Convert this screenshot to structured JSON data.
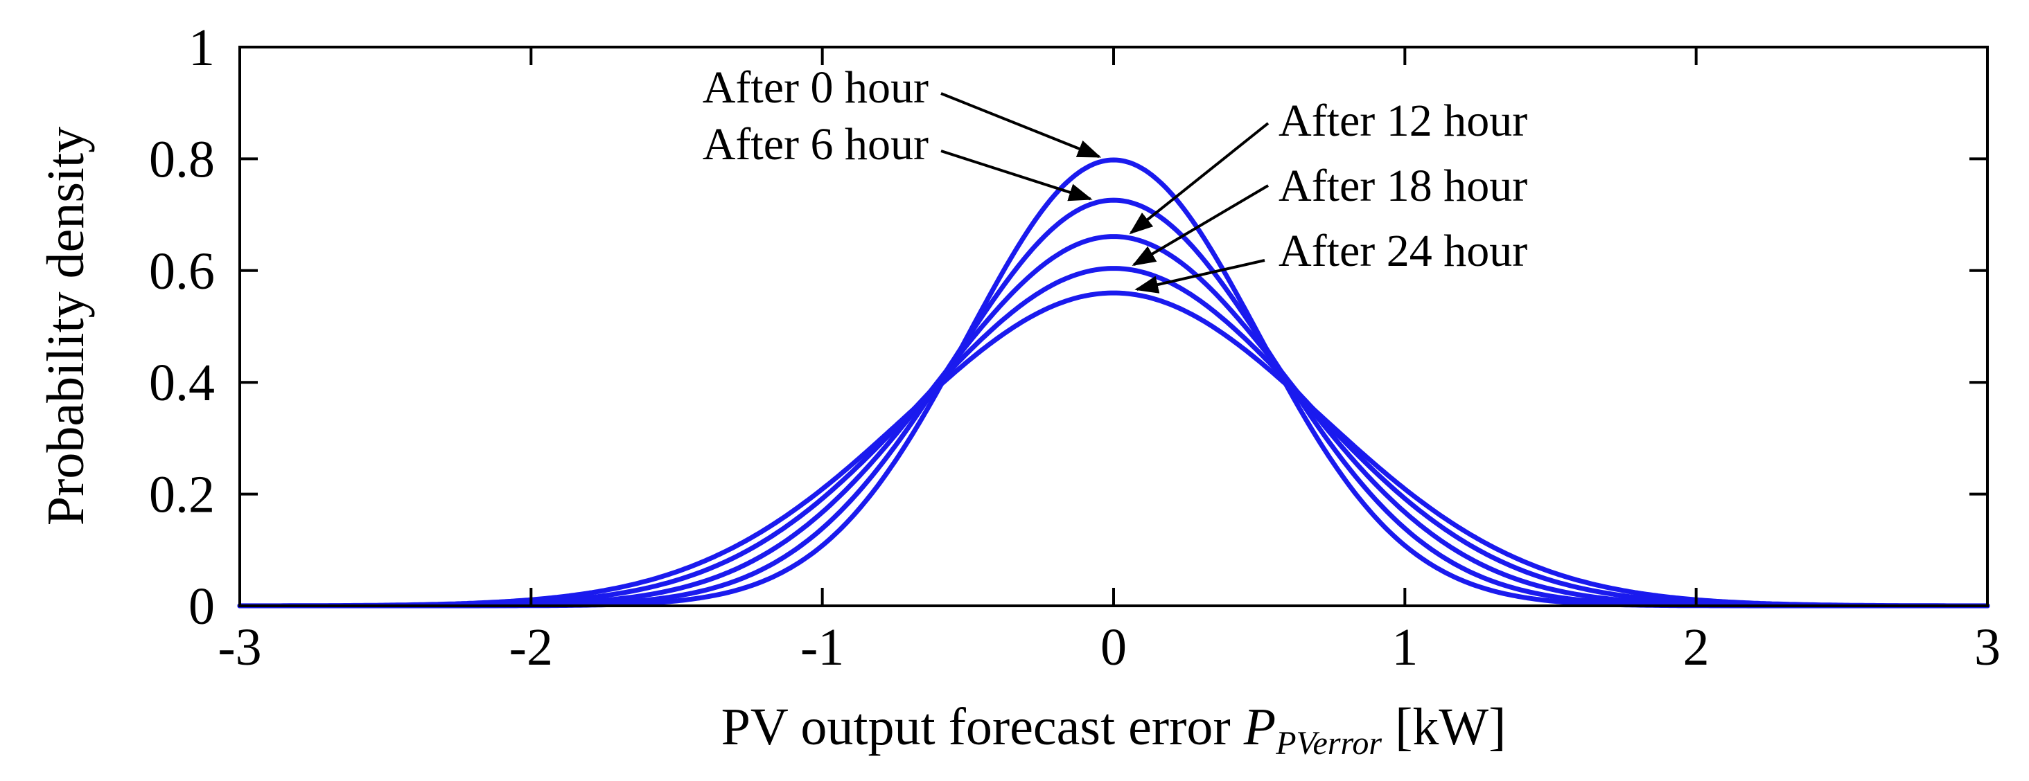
{
  "chart_data": {
    "type": "line",
    "title": "",
    "xlabel_prefix": "PV output forecast error ",
    "xlabel_symbol": "P",
    "xlabel_subscript": "PVerror",
    "xlabel_suffix": " [kW]",
    "ylabel": "Probability density",
    "xlim": [
      -3,
      3
    ],
    "ylim": [
      0,
      1
    ],
    "xticks": [
      -3,
      -2,
      -1,
      0,
      1,
      2,
      3
    ],
    "xtick_labels": [
      "-3",
      "-2",
      "-1",
      "0",
      "1",
      "2",
      "3"
    ],
    "yticks": [
      0,
      0.2,
      0.4,
      0.6,
      0.8,
      1
    ],
    "ytick_labels": [
      "0",
      "0.2",
      "0.4",
      "0.6",
      "0.8",
      "1"
    ],
    "grid": false,
    "line_color": "#1a1aee",
    "series": [
      {
        "name": "After 0 hour",
        "distribution": "normal",
        "mean": 0,
        "peak": 0.798
      },
      {
        "name": "After 6 hour",
        "distribution": "normal",
        "mean": 0,
        "peak": 0.726
      },
      {
        "name": "After 12 hour",
        "distribution": "normal",
        "mean": 0,
        "peak": 0.661
      },
      {
        "name": "After 18 hour",
        "distribution": "normal",
        "mean": 0,
        "peak": 0.604
      },
      {
        "name": "After 24 hour",
        "distribution": "normal",
        "mean": 0,
        "peak": 0.56
      }
    ],
    "annotations": [
      {
        "text": "After 0 hour",
        "series": 0
      },
      {
        "text": "After 6 hour",
        "series": 1
      },
      {
        "text": "After 12 hour",
        "series": 2
      },
      {
        "text": "After 18 hour",
        "series": 3
      },
      {
        "text": "After 24 hour",
        "series": 4
      }
    ]
  }
}
